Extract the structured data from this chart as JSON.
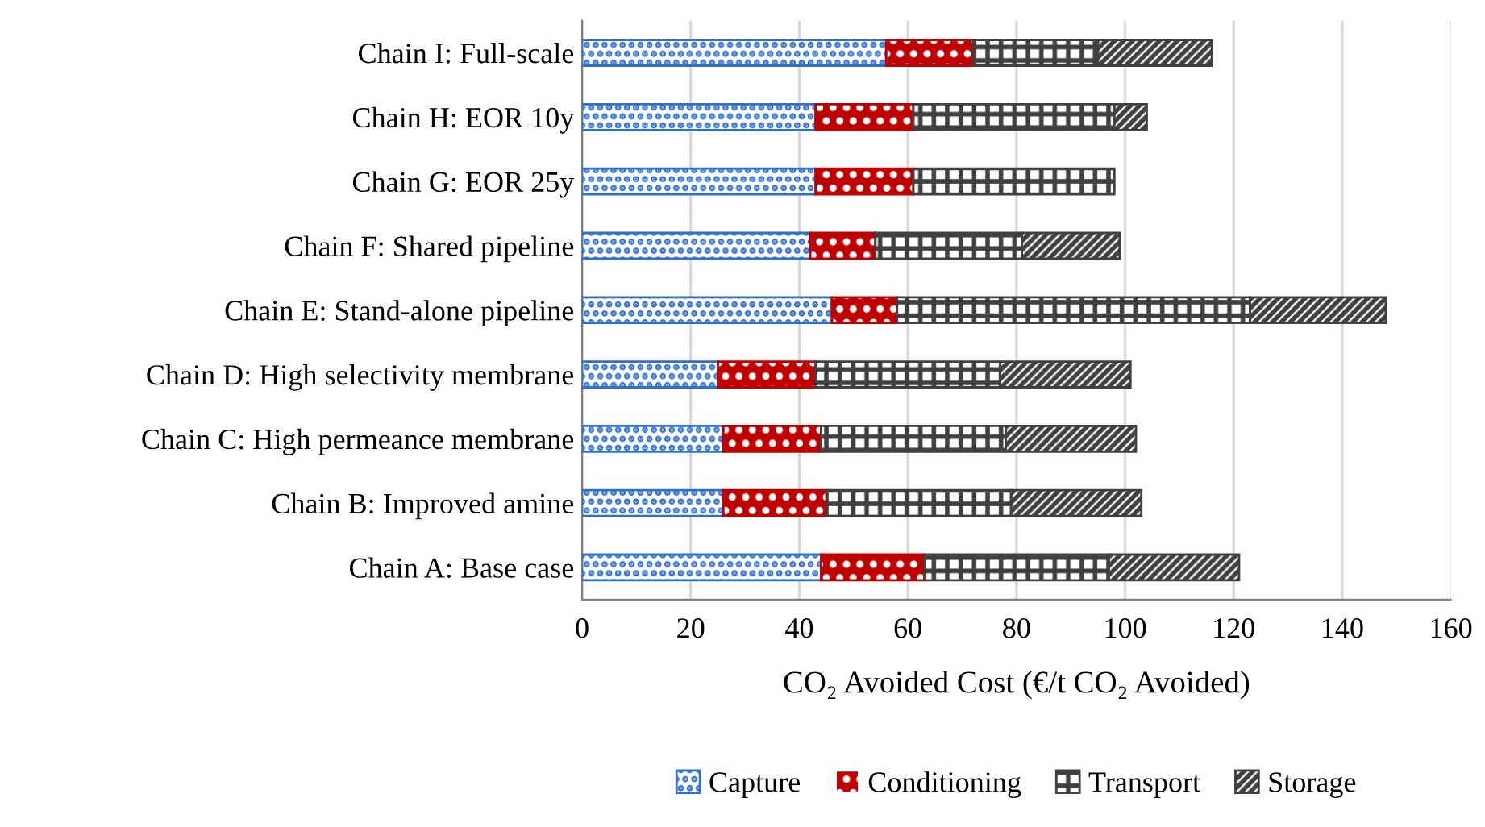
{
  "chart_data": {
    "type": "bar",
    "orientation": "horizontal",
    "stacked": true,
    "categories": [
      "Chain I: Full-scale",
      "Chain H: EOR 10y",
      "Chain G: EOR 25y",
      "Chain F: Shared pipeline",
      "Chain E: Stand-alone pipeline",
      "Chain D: High selectivity membrane",
      "Chain C: High permeance membrane",
      "Chain B: Improved amine",
      "Chain A: Base case"
    ],
    "series": [
      {
        "name": "Capture",
        "color": "#2f6fd0",
        "values": [
          56,
          43,
          43,
          42,
          46,
          25,
          26,
          26,
          44
        ]
      },
      {
        "name": "Conditioning",
        "color": "#c00000",
        "values": [
          16,
          18,
          18,
          12,
          12,
          18,
          18,
          19,
          19
        ]
      },
      {
        "name": "Transport",
        "color": "#404040",
        "values": [
          23,
          37,
          37,
          27,
          65,
          34,
          34,
          34,
          34
        ]
      },
      {
        "name": "Storage",
        "color": "#404040",
        "values": [
          21,
          6,
          0,
          18,
          25,
          24,
          24,
          24,
          24
        ]
      }
    ],
    "xlabel": "CO₂ Avoided Cost (€/t CO₂ Avoided)",
    "xlim": [
      0,
      160
    ],
    "xticks": [
      0,
      20,
      40,
      60,
      80,
      100,
      120,
      140,
      160
    ],
    "grid": "x",
    "legend": "bottom"
  }
}
